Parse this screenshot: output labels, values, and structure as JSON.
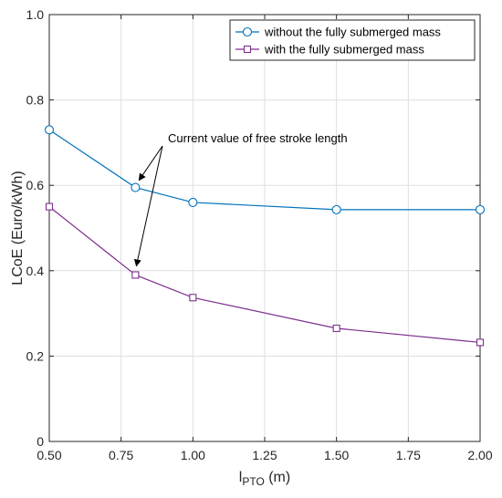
{
  "chart_data": {
    "type": "line",
    "title": "",
    "xlabel": "l",
    "xlabel_sub": "PTO",
    "xlabel_unit": " (m)",
    "ylabel": "LCoE (Euro/kWh)",
    "xlim": [
      0.5,
      2.0
    ],
    "ylim": [
      0,
      1.0
    ],
    "xticks": [
      0.5,
      0.75,
      1.0,
      1.25,
      1.5,
      1.75,
      2.0
    ],
    "xtick_labels": [
      "0.50",
      "0.75",
      "1.00",
      "1.25",
      "1.50",
      "1.75",
      "2.00"
    ],
    "yticks": [
      0,
      0.2,
      0.4,
      0.6,
      0.8,
      1.0
    ],
    "ytick_labels": [
      "0",
      "0.2",
      "0.4",
      "0.6",
      "0.8",
      "1.0"
    ],
    "grid": true,
    "legend_position": "top-right",
    "x": [
      0.5,
      0.8,
      1.0,
      1.5,
      2.0
    ],
    "series": [
      {
        "name": "without the fully submerged mass",
        "marker": "circle",
        "color": "#0072BD",
        "values": [
          0.73,
          0.595,
          0.56,
          0.543,
          0.543
        ]
      },
      {
        "name": "with the fully submerged mass",
        "marker": "square",
        "color": "#7E2F8E",
        "values": [
          0.55,
          0.39,
          0.337,
          0.265,
          0.232
        ]
      }
    ],
    "annotation": {
      "text": "Current value of free stroke length",
      "points_to": [
        {
          "x": 0.8,
          "y": 0.595
        },
        {
          "x": 0.8,
          "y": 0.39
        }
      ]
    }
  }
}
